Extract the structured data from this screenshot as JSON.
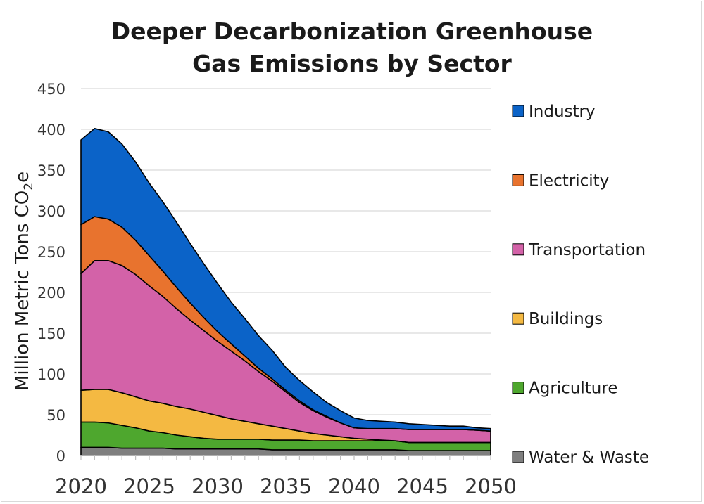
{
  "chart_data": {
    "type": "area",
    "stacked": true,
    "title_line1": "Deeper Decarbonization Greenhouse",
    "title_line2": "Gas Emissions by Sector",
    "ylabel": "Million Metric Tons CO",
    "ylabel_sub": "2",
    "ylabel_end": "e",
    "xlabel": "",
    "ylim": [
      0,
      450
    ],
    "yticks": [
      0,
      50,
      100,
      150,
      200,
      250,
      300,
      350,
      400,
      450
    ],
    "xlim": [
      2020,
      2050
    ],
    "xticks": [
      2020,
      2025,
      2030,
      2035,
      2040,
      2045,
      2050
    ],
    "grid": true,
    "legend_position": "right",
    "x": [
      2020,
      2021,
      2022,
      2023,
      2024,
      2025,
      2026,
      2027,
      2028,
      2029,
      2030,
      2031,
      2032,
      2033,
      2034,
      2035,
      2036,
      2037,
      2038,
      2039,
      2040,
      2041,
      2042,
      2043,
      2044,
      2045,
      2046,
      2047,
      2048,
      2049,
      2050
    ],
    "series": [
      {
        "name": "Water & Waste",
        "color": "#7f7f7f",
        "values": [
          10,
          10,
          10,
          9,
          9,
          9,
          9,
          8,
          8,
          8,
          8,
          8,
          8,
          8,
          7,
          7,
          7,
          7,
          7,
          7,
          7,
          7,
          7,
          7,
          6,
          6,
          6,
          6,
          6,
          6,
          6
        ]
      },
      {
        "name": "Agriculture",
        "color": "#4ea72e",
        "values": [
          31,
          31,
          30,
          28,
          25,
          21,
          19,
          17,
          15,
          13,
          12,
          12,
          12,
          12,
          12,
          12,
          12,
          11,
          11,
          11,
          11,
          11,
          11,
          11,
          10,
          10,
          10,
          10,
          10,
          10,
          10
        ]
      },
      {
        "name": "Buildings",
        "color": "#f4b942",
        "values": [
          39,
          40,
          41,
          40,
          38,
          37,
          36,
          35,
          34,
          32,
          29,
          25,
          22,
          19,
          17,
          14,
          11,
          9,
          7,
          5,
          3,
          2,
          1,
          0,
          0,
          0,
          0,
          0,
          0,
          0,
          0
        ]
      },
      {
        "name": "Transportation",
        "color": "#d362a8",
        "values": [
          143,
          158,
          158,
          156,
          150,
          141,
          131,
          120,
          109,
          100,
          91,
          83,
          74,
          64,
          55,
          45,
          35,
          28,
          22,
          17,
          13,
          13,
          14,
          15,
          16,
          16,
          16,
          16,
          16,
          15,
          14
        ]
      },
      {
        "name": "Electricity",
        "color": "#e8732e",
        "values": [
          60,
          54,
          51,
          47,
          42,
          37,
          31,
          26,
          21,
          16,
          12,
          9,
          6,
          4,
          3,
          2,
          2,
          1,
          1,
          0,
          0,
          0,
          0,
          0,
          0,
          0,
          0,
          0,
          0,
          0,
          0
        ]
      },
      {
        "name": "Industry",
        "color": "#0b63c8",
        "values": [
          104,
          108,
          107,
          102,
          96,
          89,
          85,
          80,
          73,
          66,
          59,
          51,
          46,
          40,
          35,
          28,
          25,
          22,
          17,
          15,
          12,
          10,
          9,
          8,
          7,
          6,
          5,
          4,
          4,
          3,
          3
        ]
      }
    ]
  }
}
